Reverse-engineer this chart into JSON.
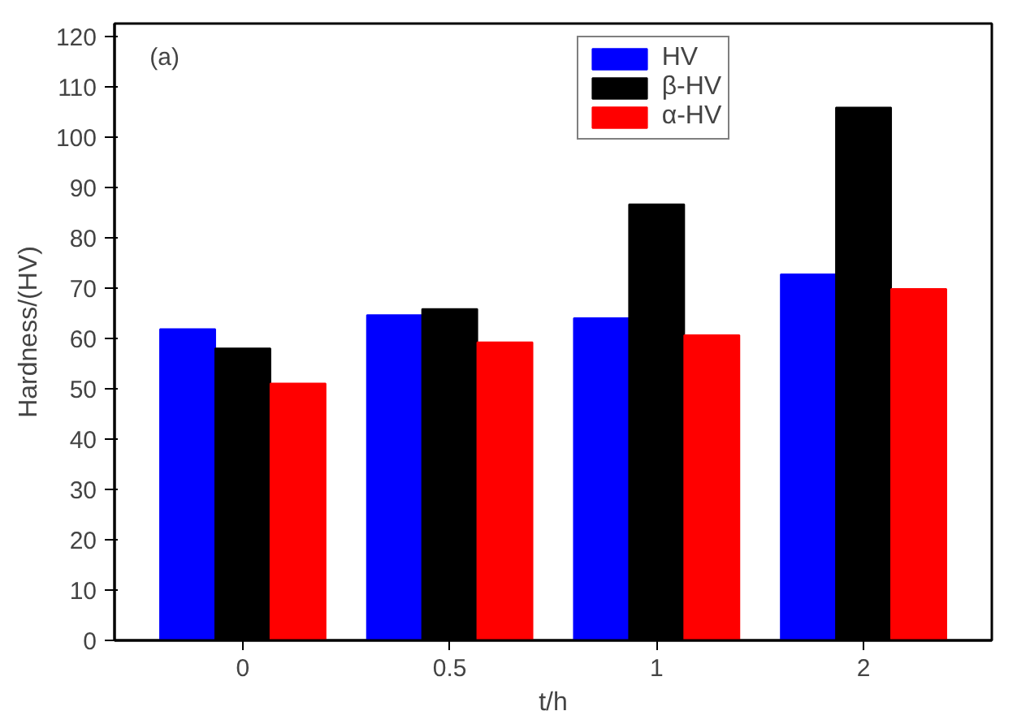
{
  "chart_data": {
    "type": "bar",
    "xlabel": "t/h",
    "ylabel": "Hardness/(HV)",
    "annotations": [
      "(a)"
    ],
    "categories": [
      "0",
      "0.5",
      "1",
      "2"
    ],
    "series": [
      {
        "name": "HV",
        "color": "#0000ff",
        "values": [
          61.8,
          64.6,
          64,
          72.7
        ]
      },
      {
        "name": "β-HV",
        "color": "#000000",
        "values": [
          58,
          65.8,
          86.6,
          105.8
        ]
      },
      {
        "name": "α-HV",
        "color": "#ff0000",
        "values": [
          51,
          59.2,
          60.6,
          69.8
        ]
      }
    ],
    "ylim": [
      0,
      122.5
    ],
    "yticks": [
      0,
      10,
      20,
      30,
      40,
      50,
      60,
      70,
      80,
      90,
      100,
      110,
      120
    ],
    "grid": false,
    "legend": "top right"
  }
}
